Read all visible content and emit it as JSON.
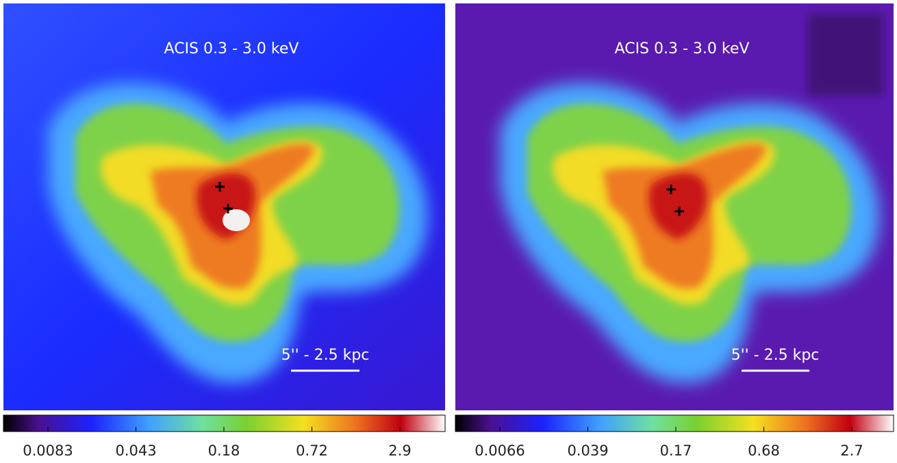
{
  "panels": [
    {
      "label": "ACIS 0.3 - 3.0 keV",
      "scale_label": "5'' - 2.5 kpc",
      "colorbar_ticks": [
        0.0083,
        0.043,
        0.18,
        0.72,
        2.9
      ]
    },
    {
      "label": "ACIS 0.3 - 3.0 keV",
      "scale_label": "5'' - 2.5 kpc",
      "colorbar_ticks": [
        0.0066,
        0.039,
        0.17,
        0.68,
        2.7
      ]
    }
  ]
}
